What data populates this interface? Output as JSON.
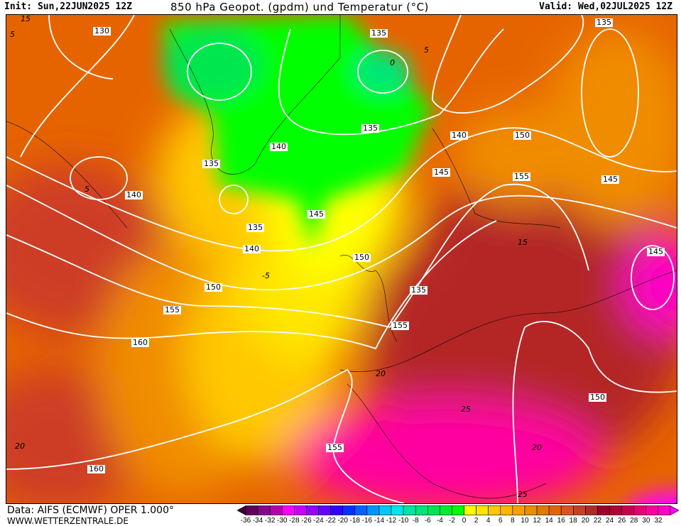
{
  "header": {
    "init": "Init: Sun,22JUN2025 12Z",
    "title": "850 hPa Geopot. (gpdm) und Temperatur (°C)",
    "valid": "Valid: Wed,02JUL2025 12Z"
  },
  "footer": {
    "data_source": "Data: AIFS (ECMWF) OPER 1.000°",
    "website": "WWW.WETTERZENTRALE.DE"
  },
  "map": {
    "geopotential_labels": [
      "130",
      "135",
      "135",
      "135",
      "140",
      "135",
      "140",
      "140",
      "135",
      "145",
      "140",
      "150",
      "150",
      "145",
      "150",
      "155",
      "155",
      "155",
      "160",
      "150",
      "160",
      "155",
      "145",
      "135",
      "145"
    ],
    "temperature_labels": [
      "15",
      "5",
      "0",
      "5",
      "-5",
      "15",
      "20",
      "25",
      "20",
      "25",
      "20",
      "5"
    ]
  },
  "legend": {
    "labels": [
      "-36",
      "-34",
      "-32",
      "-30",
      "-28",
      "-26",
      "-24",
      "-22",
      "-20",
      "-18",
      "-16",
      "-14",
      "-12",
      "-10",
      "-8",
      "-6",
      "-4",
      "-2",
      "0",
      "2",
      "4",
      "6",
      "8",
      "10",
      "12",
      "14",
      "16",
      "18",
      "20",
      "22",
      "24",
      "26",
      "28",
      "30",
      "32"
    ],
    "colors": [
      "#3c0032",
      "#60005a",
      "#8c0090",
      "#b400b4",
      "#ff00ff",
      "#c800ff",
      "#9600ff",
      "#6400ff",
      "#3200ff",
      "#0032ff",
      "#0064ff",
      "#0096ff",
      "#00c8ff",
      "#00e6f0",
      "#00e6a0",
      "#00e678",
      "#00e650",
      "#00f028",
      "#00ff00",
      "#ffff00",
      "#ffe600",
      "#ffc800",
      "#ffb400",
      "#ffa000",
      "#f08c00",
      "#e67800",
      "#e66400",
      "#e05020",
      "#cd3c28",
      "#b42828",
      "#a00028",
      "#b40032",
      "#c80050",
      "#e60078",
      "#ff00a0",
      "#ff00c8",
      "#ff00ff"
    ]
  }
}
